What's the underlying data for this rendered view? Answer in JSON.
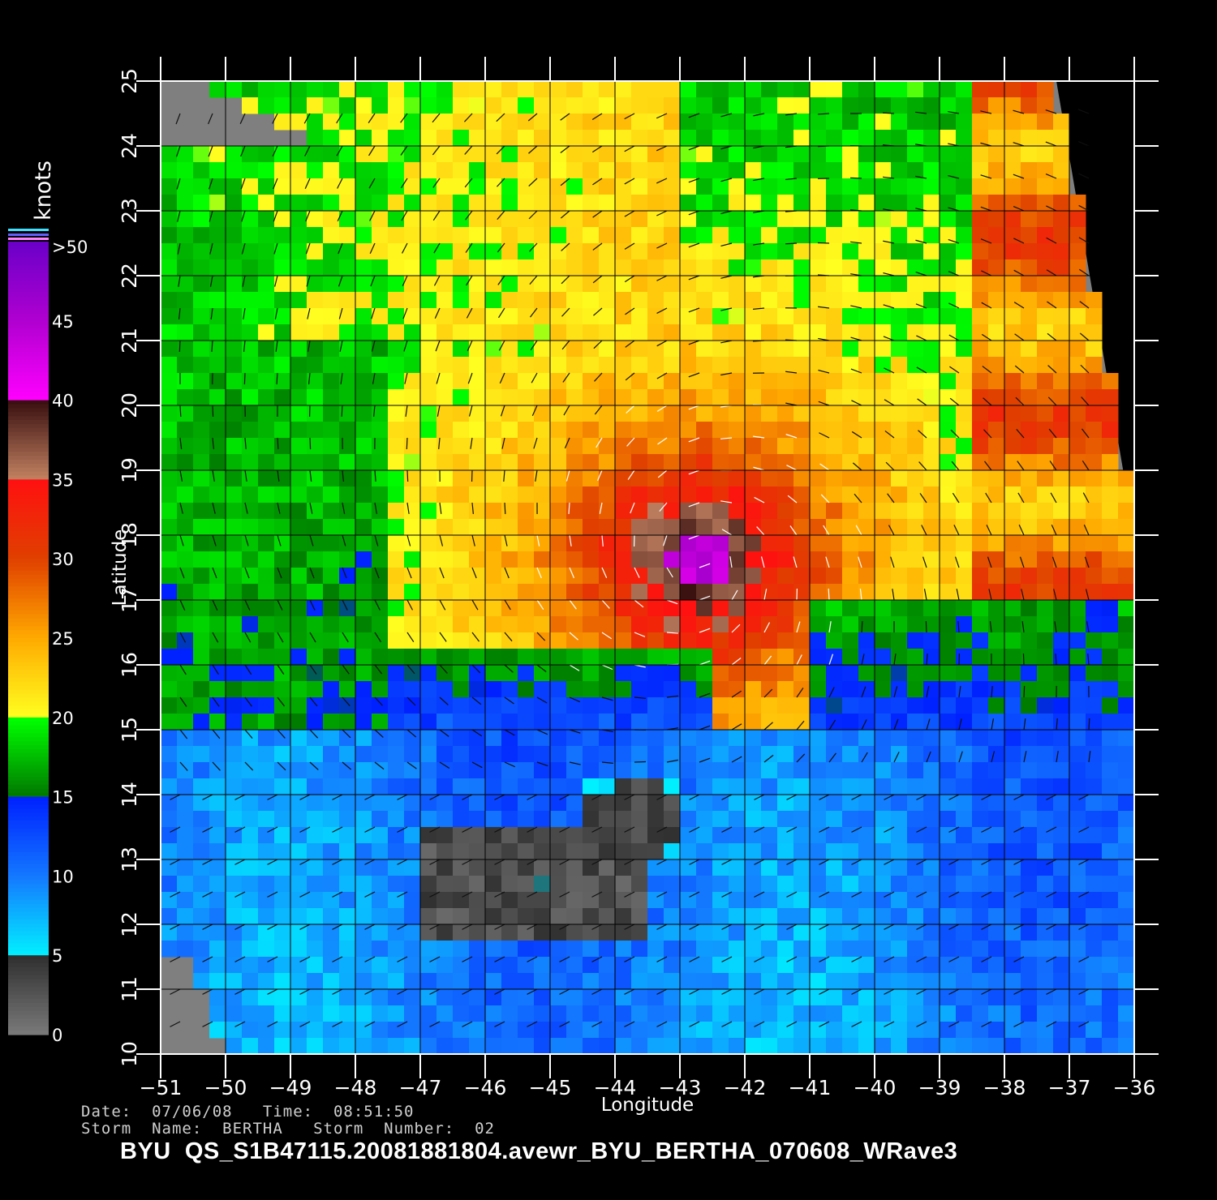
{
  "colorbar": {
    "unit": "knots",
    "labels": [
      ">50",
      "45",
      "40",
      "35",
      "30",
      "25",
      "20",
      "15",
      "10",
      "5",
      "0"
    ],
    "stops": [
      {
        "speed": 50,
        "color": "#6a00c8"
      },
      {
        "speed": 45,
        "color": "#b000d0"
      },
      {
        "speed": 40,
        "color": "#ff00ff"
      },
      {
        "speed": 39.9,
        "color": "#3a1010"
      },
      {
        "speed": 35.1,
        "color": "#c08060"
      },
      {
        "speed": 35,
        "color": "#ff1010"
      },
      {
        "speed": 30,
        "color": "#e04000"
      },
      {
        "speed": 25,
        "color": "#ffaa00"
      },
      {
        "speed": 20,
        "color": "#ffff20"
      },
      {
        "speed": 19.9,
        "color": "#00ff00"
      },
      {
        "speed": 15.1,
        "color": "#007a00"
      },
      {
        "speed": 15,
        "color": "#0020ff"
      },
      {
        "speed": 10,
        "color": "#1478ff"
      },
      {
        "speed": 5,
        "color": "#00f0ff"
      },
      {
        "speed": 4.9,
        "color": "#303030"
      },
      {
        "speed": 0,
        "color": "#7a7a7a"
      }
    ]
  },
  "chart_data": {
    "type": "heatmap",
    "title": "",
    "xlabel": "Longitude",
    "ylabel": "Latitude",
    "xlim": [
      -51,
      -36
    ],
    "ylim": [
      10,
      25
    ],
    "x_ticks": [
      "−51",
      "−50",
      "−49",
      "−48",
      "−47",
      "−46",
      "−45",
      "−44",
      "−43",
      "−42",
      "−41",
      "−40",
      "−39",
      "−38",
      "−37",
      "−36"
    ],
    "y_ticks": [
      "10",
      "11",
      "12",
      "13",
      "14",
      "15",
      "16",
      "17",
      "18",
      "19",
      "20",
      "21",
      "22",
      "23",
      "24",
      "25"
    ],
    "grid": true,
    "no_data_color": "#7f7f7f",
    "storm_center": {
      "lon": -42.7,
      "lat": 17.6
    },
    "max_wind_knots": 45
  },
  "info": {
    "date_line": "Date:  07/06/08   Time:  08:51:50",
    "storm_line": "Storm  Name:  BERTHA   Storm  Number:  02",
    "file_id": "BYU  QS_S1B47115.20081881804.avewr_BYU_BERTHA_070608_WRave3"
  }
}
